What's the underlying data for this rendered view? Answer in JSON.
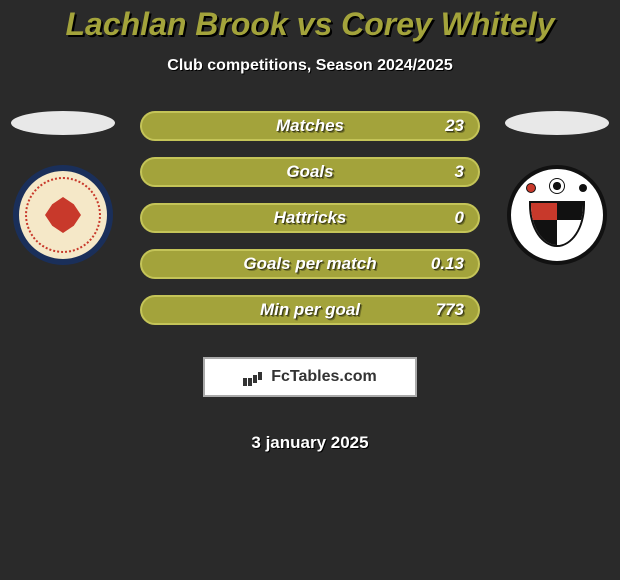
{
  "title": "Lachlan Brook vs Corey Whitely",
  "subtitle": "Club competitions, Season 2024/2025",
  "colors": {
    "background": "#2a2a2a",
    "accent": "#a3a33b",
    "accent_border": "#c4c458",
    "text": "#ffffff"
  },
  "stats": [
    {
      "label": "Matches",
      "value": "23"
    },
    {
      "label": "Goals",
      "value": "3"
    },
    {
      "label": "Hattricks",
      "value": "0"
    },
    {
      "label": "Goals per match",
      "value": "0.13"
    },
    {
      "label": "Min per goal",
      "value": "773"
    }
  ],
  "brand": {
    "name": "FcTables.com"
  },
  "date": "3 january 2025",
  "left_team": {
    "name": "Crewe Alexandra Football Club"
  },
  "right_team": {
    "name": "Bromley FC"
  }
}
